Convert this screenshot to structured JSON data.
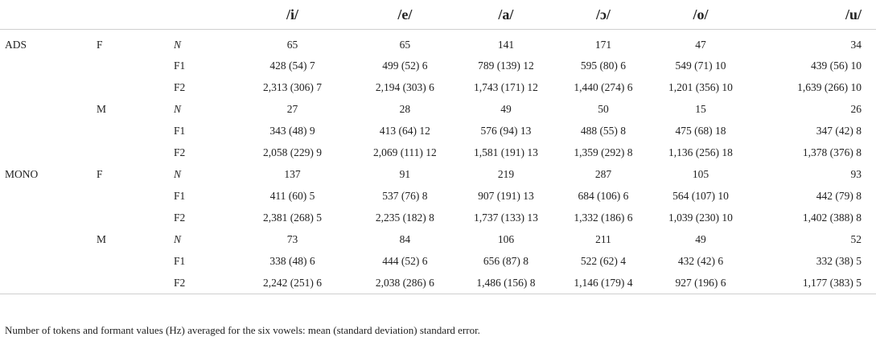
{
  "table": {
    "headers": [
      "/i/",
      "/e/",
      "/a/",
      "/ɔ/",
      "/o/",
      "/u/"
    ],
    "rows": [
      {
        "group": "ADS",
        "sex": "F",
        "measure": "N",
        "values": [
          "65",
          "65",
          "141",
          "171",
          "47",
          "34"
        ]
      },
      {
        "group": "",
        "sex": "",
        "measure": "F1",
        "values": [
          "428 (54) 7",
          "499 (52) 6",
          "789 (139) 12",
          "595 (80) 6",
          "549 (71) 10",
          "439 (56) 10"
        ]
      },
      {
        "group": "",
        "sex": "",
        "measure": "F2",
        "values": [
          "2,313 (306) 7",
          "2,194 (303) 6",
          "1,743 (171) 12",
          "1,440 (274) 6",
          "1,201 (356) 10",
          "1,639 (266) 10"
        ]
      },
      {
        "group": "",
        "sex": "M",
        "measure": "N",
        "values": [
          "27",
          "28",
          "49",
          "50",
          "15",
          "26"
        ]
      },
      {
        "group": "",
        "sex": "",
        "measure": "F1",
        "values": [
          "343 (48) 9",
          "413 (64) 12",
          "576 (94) 13",
          "488 (55) 8",
          "475 (68) 18",
          "347 (42) 8"
        ]
      },
      {
        "group": "",
        "sex": "",
        "measure": "F2",
        "values": [
          "2,058 (229) 9",
          "2,069 (111) 12",
          "1,581 (191) 13",
          "1,359 (292) 8",
          "1,136 (256) 18",
          "1,378 (376) 8"
        ]
      },
      {
        "group": "MONO",
        "sex": "F",
        "measure": "N",
        "values": [
          "137",
          "91",
          "219",
          "287",
          "105",
          "93"
        ]
      },
      {
        "group": "",
        "sex": "",
        "measure": "F1",
        "values": [
          "411 (60) 5",
          "537 (76) 8",
          "907 (191) 13",
          "684 (106) 6",
          "564 (107) 10",
          "442 (79) 8"
        ]
      },
      {
        "group": "",
        "sex": "",
        "measure": "F2",
        "values": [
          "2,381 (268) 5",
          "2,235 (182) 8",
          "1,737 (133) 13",
          "1,332 (186) 6",
          "1,039 (230) 10",
          "1,402 (388) 8"
        ]
      },
      {
        "group": "",
        "sex": "M",
        "measure": "N",
        "values": [
          "73",
          "84",
          "106",
          "211",
          "49",
          "52"
        ]
      },
      {
        "group": "",
        "sex": "",
        "measure": "F1",
        "values": [
          "338 (48) 6",
          "444 (52) 6",
          "656 (87) 8",
          "522 (62) 4",
          "432 (42) 6",
          "332 (38) 5"
        ]
      },
      {
        "group": "",
        "sex": "",
        "measure": "F2",
        "values": [
          "2,242 (251) 6",
          "2,038 (286) 6",
          "1,486 (156) 8",
          "1,146 (179) 4",
          "927 (196) 6",
          "1,177 (383) 5"
        ]
      }
    ]
  },
  "caption": "Number of tokens and formant values (Hz) averaged for the six vowels: mean (standard deviation) standard error."
}
